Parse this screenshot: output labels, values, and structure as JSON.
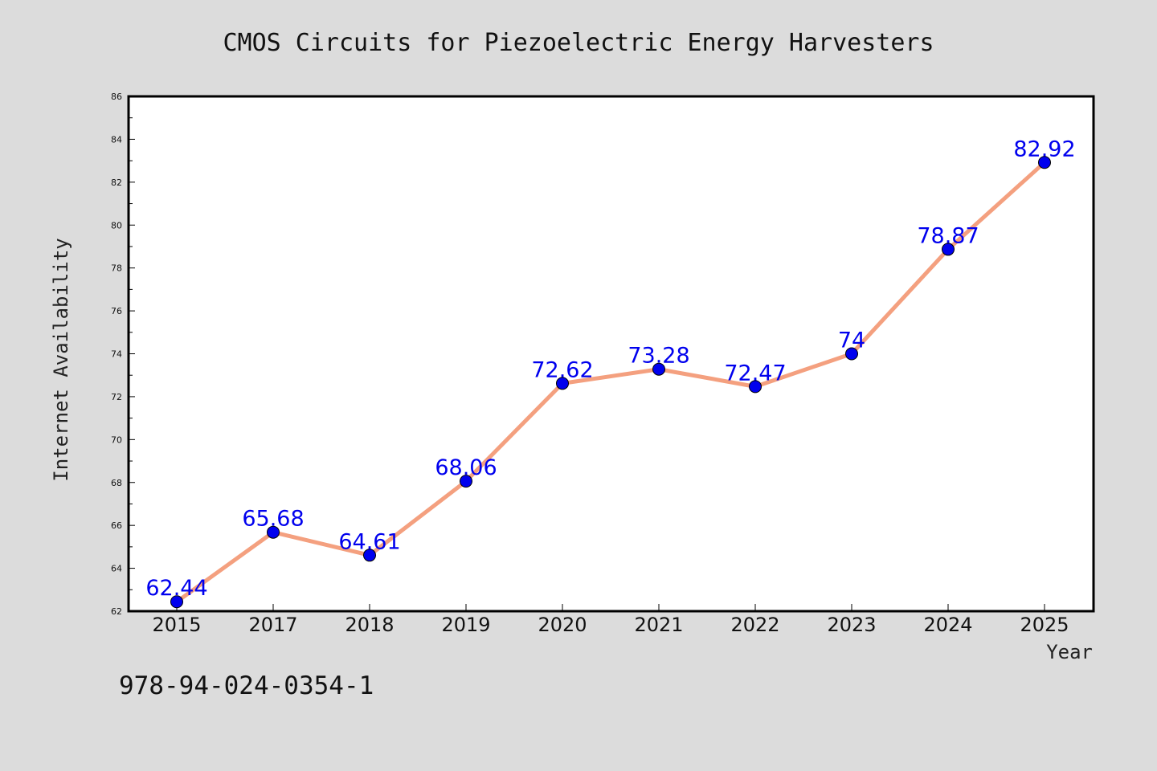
{
  "chart_data": {
    "type": "line",
    "title": "CMOS Circuits for Piezoelectric Energy Harvesters",
    "xlabel": "Year",
    "ylabel": "Internet Availability",
    "categories": [
      "2015",
      "2017",
      "2018",
      "2019",
      "2020",
      "2021",
      "2022",
      "2023",
      "2024",
      "2025"
    ],
    "series": [
      {
        "values": [
          62.44,
          65.68,
          64.61,
          68.06,
          72.62,
          73.28,
          72.47,
          74,
          78.87,
          82.92
        ],
        "labels": [
          "62.44",
          "65.68",
          "64.61",
          "68.06",
          "72.62",
          "73.28",
          "72.47",
          "74",
          "78.87",
          "82.92"
        ],
        "line_color": "#f4a07f",
        "marker_color": "#0000ee",
        "label_color": "#0000ee"
      }
    ],
    "ylim": [
      62,
      86
    ],
    "yticks": [
      "62",
      "64",
      "66",
      "68",
      "70",
      "72",
      "74",
      "76",
      "78",
      "80",
      "82",
      "84",
      "86"
    ],
    "grid": false,
    "legend": "none"
  },
  "annotation": "978-94-024-0354-1",
  "colors": {
    "background": "#dcdcdc",
    "plot_background": "#ffffff",
    "frame": "#000000"
  }
}
